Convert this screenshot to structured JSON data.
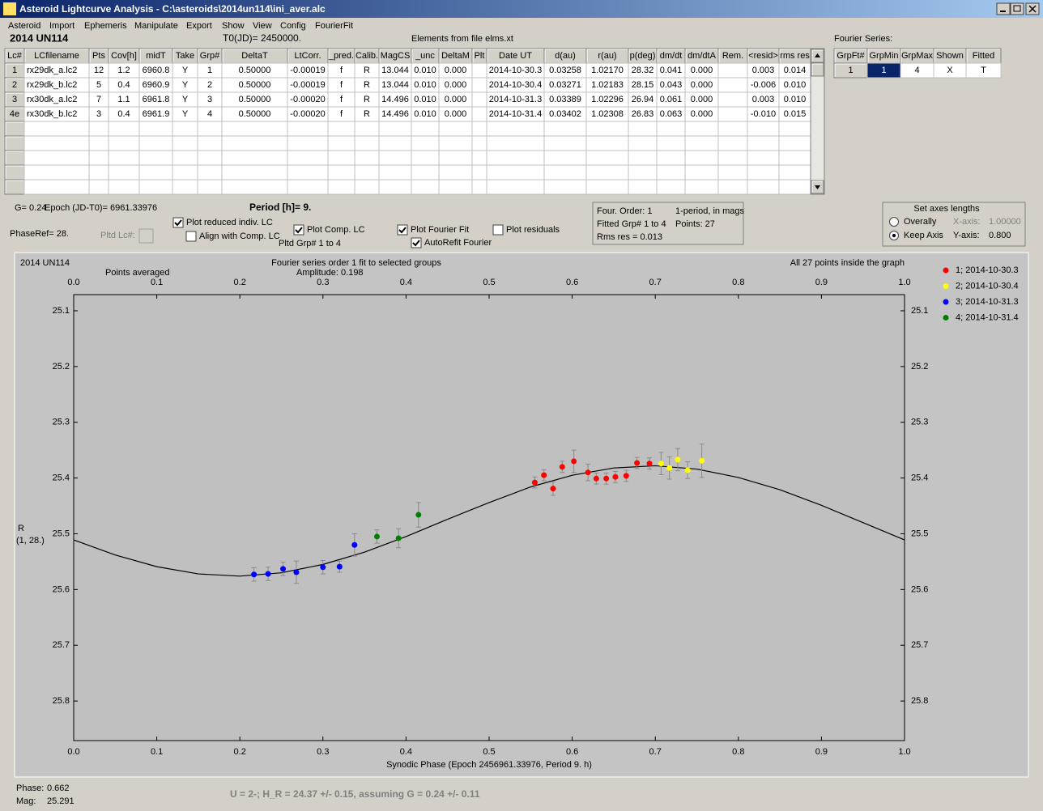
{
  "window": {
    "title": "Asteroid Lightcurve Analysis - C:\\asteroids\\2014un114\\ini_aver.alc"
  },
  "menu": [
    "Asteroid",
    "Import",
    "Ephemeris",
    "Manipulate",
    "Export",
    "Show",
    "View",
    "Config",
    "FourierFit"
  ],
  "header": {
    "asteroid": "2014 UN114",
    "t0": "T0(JD)= 2450000.",
    "elements": "Elements from file elms.xt"
  },
  "table": {
    "columns": [
      "Lc#",
      "LCfilename",
      "Pts",
      "Cov[h]",
      "midT",
      "Take",
      "Grp#",
      "DeltaT",
      "LtCorr.",
      "_pred.",
      "Calib.",
      "MagCS",
      "_unc",
      "DeltaM",
      "Plt",
      "Date UT",
      "d(au)",
      "r(au)",
      "p(deg)",
      "dm/dt",
      "dm/dtA",
      "Rem.",
      "<resid>",
      "rms res"
    ],
    "rows": [
      [
        "1",
        "rx29dk_a.lc2",
        "12",
        "1.2",
        "6960.8",
        "Y",
        "1",
        "0.50000",
        "-0.00019",
        "f",
        "R",
        "13.044",
        "0.010",
        "0.000",
        null,
        "2014-10-30.3",
        "0.03258",
        "1.02170",
        "28.32",
        "0.041",
        "0.000",
        null,
        "0.003",
        "0.014"
      ],
      [
        "2",
        "rx29dk_b.lc2",
        "5",
        "0.4",
        "6960.9",
        "Y",
        "2",
        "0.50000",
        "-0.00019",
        "f",
        "R",
        "13.044",
        "0.010",
        "0.000",
        null,
        "2014-10-30.4",
        "0.03271",
        "1.02183",
        "28.15",
        "0.043",
        "0.000",
        null,
        "-0.006",
        "0.010"
      ],
      [
        "3",
        "rx30dk_a.lc2",
        "7",
        "1.1",
        "6961.8",
        "Y",
        "3",
        "0.50000",
        "-0.00020",
        "f",
        "R",
        "14.496",
        "0.010",
        "0.000",
        null,
        "2014-10-31.3",
        "0.03389",
        "1.02296",
        "26.94",
        "0.061",
        "0.000",
        null,
        "0.003",
        "0.010"
      ],
      [
        "4e",
        "rx30dk_b.lc2",
        "3",
        "0.4",
        "6961.9",
        "Y",
        "4",
        "0.50000",
        "-0.00020",
        "f",
        "R",
        "14.496",
        "0.010",
        "0.000",
        null,
        "2014-10-31.4",
        "0.03402",
        "1.02308",
        "26.83",
        "0.063",
        "0.000",
        null,
        "-0.010",
        "0.015"
      ]
    ]
  },
  "fourier": {
    "label": "Fourier Series:",
    "columns": [
      "GrpFt#",
      "GrpMin",
      "GrpMax",
      "Shown",
      "Fitted"
    ],
    "rows": [
      [
        "1",
        "1",
        "4",
        "X",
        "T"
      ]
    ]
  },
  "controls": {
    "g": "G= 0.24",
    "epoch": "Epoch (JD-T0)= 6961.33976",
    "period": "Period [h]= 9.",
    "phaseref": "PhaseRef= 28.",
    "pltd_lc": "Pltd Lc#:",
    "pltd_grp": "Pltd Grp#  1   to   4",
    "checkboxes": [
      {
        "label": "Plot reduced indiv. LC",
        "checked": true
      },
      {
        "label": "Align with Comp. LC",
        "checked": false
      },
      {
        "label": "Plot Comp. LC",
        "checked": true
      },
      {
        "label": "Plot Fourier Fit",
        "checked": true
      },
      {
        "label": "AutoRefit Fourier",
        "checked": true
      },
      {
        "label": "Plot residuals",
        "checked": false
      }
    ]
  },
  "fit_info": [
    "Four. Order:  1",
    "1-period, in mags",
    "Fitted Grp# 1 to 4",
    "Points: 27",
    "Rms res    = 0.013"
  ],
  "axes_box": {
    "title": "Set axes lengths",
    "options": [
      {
        "label": "Overally",
        "selected": false
      },
      {
        "label": "Keep Axis",
        "selected": true
      }
    ],
    "x_label": "X-axis:",
    "x_value": "1.00000",
    "y_label": "Y-axis:",
    "y_value": "0.800"
  },
  "chart_data": {
    "type": "scatter",
    "object": "2014 UN114",
    "subtitle": "Points averaged",
    "title": "Fourier series order 1 fit to selected groups",
    "amplitude": "Amplitude: 0.198",
    "note": "All 27 points inside the graph",
    "ylabel": "R",
    "ylabel2": "(1, 28.)",
    "xlabel": "Synodic Phase (Epoch 2456961.33976, Period 9. h)",
    "xlim": [
      0,
      1
    ],
    "xticks": [
      {
        "value": 0,
        "label": "0.0"
      },
      0.1,
      0.2,
      0.3,
      0.4,
      0.5,
      0.6,
      0.7,
      0.8,
      0.9,
      {
        "value": 1,
        "label": "1.0"
      }
    ],
    "ylim": [
      25.071,
      25.871
    ],
    "yticks": [
      25.1,
      25.2,
      25.3,
      25.4,
      25.5,
      25.6,
      25.7,
      25.8
    ],
    "y_inverted": true,
    "legend": "right",
    "series": [
      {
        "name": "1; 2014-10-30.3",
        "color": "#ff0000",
        "x": [
          0.555,
          0.566,
          0.577,
          0.588,
          0.602,
          0.619,
          0.629,
          0.641,
          0.652,
          0.665,
          0.678,
          0.693
        ],
        "values": [
          25.408,
          25.395,
          25.419,
          25.38,
          25.37,
          25.39,
          25.401,
          25.401,
          25.398,
          25.396,
          25.373,
          25.374
        ],
        "errors": [
          0.01,
          0.01,
          0.012,
          0.01,
          0.02,
          0.015,
          0.01,
          0.01,
          0.01,
          0.01,
          0.01,
          0.01
        ]
      },
      {
        "name": "2; 2014-10-30.4",
        "color": "#ffff00",
        "x": [
          0.707,
          0.717,
          0.727,
          0.739,
          0.756
        ],
        "values": [
          25.374,
          25.382,
          25.367,
          25.386,
          25.369
        ],
        "errors": [
          0.02,
          0.02,
          0.02,
          0.015,
          0.03
        ]
      },
      {
        "name": "3; 2014-10-31.3",
        "color": "#0000ff",
        "x": [
          0.217,
          0.234,
          0.252,
          0.268,
          0.3,
          0.32,
          0.338
        ],
        "values": [
          25.573,
          25.572,
          25.563,
          25.569,
          25.56,
          25.559,
          25.52
        ],
        "errors": [
          0.012,
          0.012,
          0.012,
          0.02,
          0.012,
          0.01,
          0.02
        ]
      },
      {
        "name": "4; 2014-10-31.4",
        "color": "#008000",
        "x": [
          0.365,
          0.391,
          0.415
        ],
        "values": [
          25.505,
          25.508,
          25.466
        ],
        "errors": [
          0.012,
          0.017,
          0.022
        ]
      }
    ],
    "fit": {
      "color": "#000000",
      "x": [
        0,
        0.05,
        0.1,
        0.15,
        0.2,
        0.25,
        0.3,
        0.35,
        0.4,
        0.45,
        0.5,
        0.55,
        0.6,
        0.65,
        0.7,
        0.75,
        0.8,
        0.85,
        0.9,
        0.95,
        1
      ],
      "values": [
        25.511,
        25.538,
        25.559,
        25.572,
        25.576,
        25.57,
        25.555,
        25.533,
        25.505,
        25.474,
        25.444,
        25.416,
        25.395,
        25.382,
        25.378,
        25.384,
        25.399,
        25.421,
        25.449,
        25.48,
        25.511
      ]
    }
  },
  "status": {
    "phase": "Phase:",
    "phase_value": "0.662",
    "mag": "Mag:",
    "mag_value": "25.291",
    "summary": "U = 2-; H_R = 24.37 +/- 0.15, assuming G = 0.24 +/- 0.11"
  }
}
